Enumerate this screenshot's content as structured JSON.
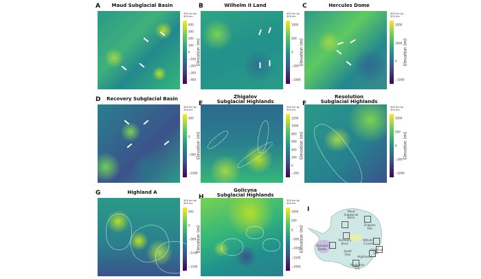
{
  "scale_label": "300 km by 300 km",
  "axis_label": "Elevation (m)",
  "panels": [
    {
      "letter": "A",
      "title": "Maud Subglacial Basin",
      "ticks": [
        "400",
        "300",
        "200",
        "100",
        "0",
        "−100",
        "−200",
        "−300",
        "−400"
      ]
    },
    {
      "letter": "B",
      "title": "Wilhelm II Land",
      "ticks": [
        "1000",
        "500",
        "0",
        "−500",
        "−1000"
      ]
    },
    {
      "letter": "C",
      "title": "Hercules Dome",
      "ticks": [
        "2000",
        "1000",
        "0",
        "−1000"
      ]
    },
    {
      "letter": "D",
      "title": "Recovery Subglacial Basin",
      "ticks": [
        "500",
        "0",
        "−500",
        "−1000"
      ]
    },
    {
      "letter": "E",
      "title": "Zhigalov\nSubglacial Highlands",
      "ticks": [
        "1200",
        "1000",
        "800",
        "600",
        "400",
        "200",
        "0",
        "−200"
      ]
    },
    {
      "letter": "F",
      "title": "Resolution\nSubglacial Highlands",
      "ticks": [
        "1000",
        "500",
        "0",
        "−500",
        "−1000"
      ]
    },
    {
      "letter": "G",
      "title": "Highland A",
      "ticks": [
        "500",
        "0",
        "−500",
        "−1000",
        "−1500"
      ]
    },
    {
      "letter": "H",
      "title": "Golicyna\nSubglacial Highlands",
      "ticks": [
        "1000",
        "500",
        "0",
        "−500",
        "−1000",
        "−1500",
        "−2000"
      ]
    }
  ],
  "inset": {
    "letter": "I",
    "labels": [
      "Maud Subglacial Basin",
      "Zhigalov SHs",
      "Recovery Basin",
      "Wilhelm II Land",
      "Golicyna SHs",
      "Hercules Dome",
      "South Pole",
      "Highland A",
      "Resolution SHs"
    ]
  },
  "colormap": [
    "#440154",
    "#3b528b",
    "#21918c",
    "#5ec962",
    "#fde725"
  ]
}
